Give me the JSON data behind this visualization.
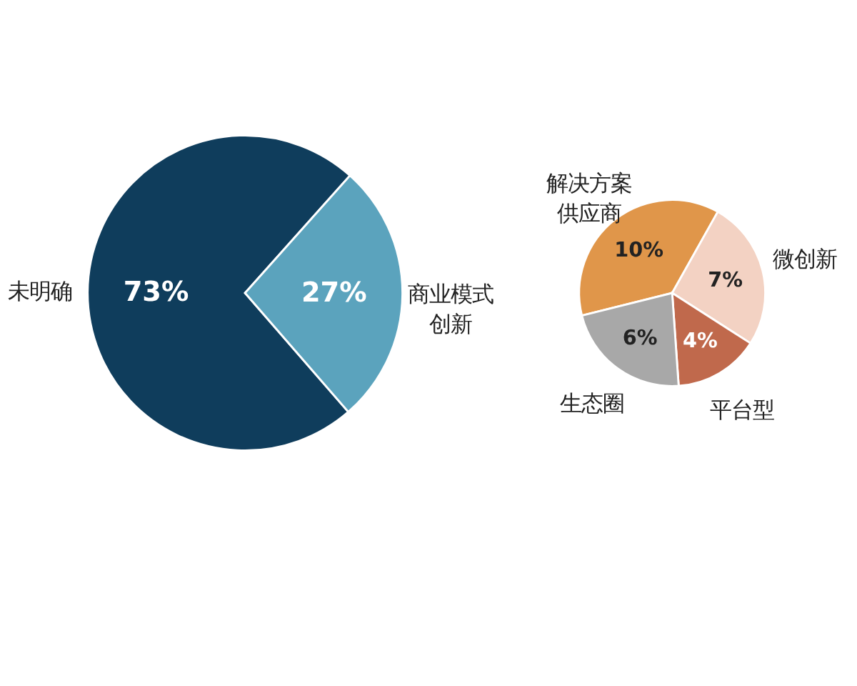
{
  "chart_data": [
    {
      "type": "pie",
      "categories": [
        "未明确",
        "商业模式创新"
      ],
      "values": [
        73,
        27
      ],
      "colors": [
        "#0f3d5c",
        "#5ba3bd"
      ],
      "value_labels": [
        "73%",
        "27%"
      ]
    },
    {
      "type": "pie",
      "categories": [
        "解决方案供应商",
        "微创新",
        "平台型",
        "生态圈"
      ],
      "values": [
        10,
        7,
        4,
        6
      ],
      "colors": [
        "#e0964a",
        "#f3d2c3",
        "#c0694c",
        "#a8a8a8"
      ],
      "value_labels": [
        "10%",
        "7%",
        "4%",
        "6%"
      ]
    }
  ]
}
